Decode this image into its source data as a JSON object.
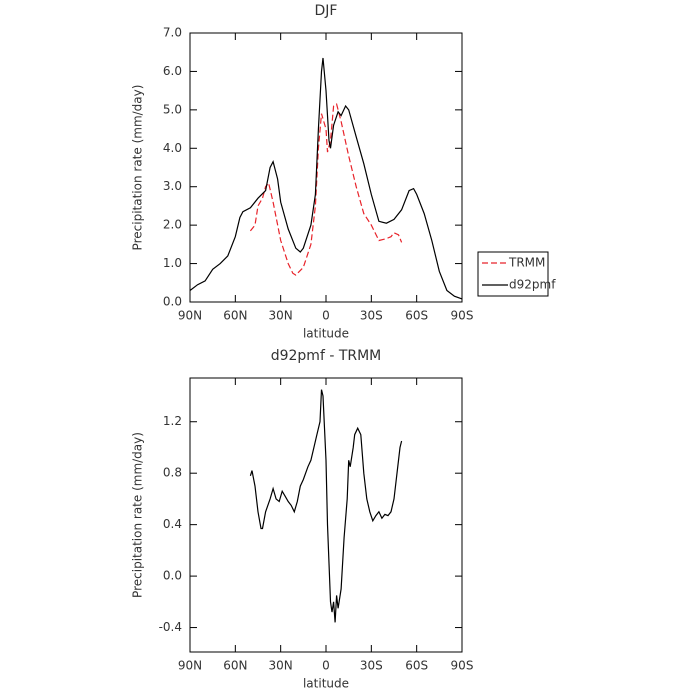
{
  "chart_data": [
    {
      "type": "line",
      "title": "DJF",
      "xlabel": "latitude",
      "ylabel": "Precipitation rate (mm/day)",
      "xlim": [
        90,
        -90
      ],
      "xticks": [
        {
          "value": 90,
          "label": "90N"
        },
        {
          "value": 60,
          "label": "60N"
        },
        {
          "value": 30,
          "label": "30N"
        },
        0,
        {
          "value": -30,
          "label": "30S"
        },
        {
          "value": -60,
          "label": "60S"
        },
        {
          "value": -90,
          "label": "90S"
        }
      ],
      "ylim": [
        0,
        7
      ],
      "yticks": [
        {
          "value": 0,
          "label": "0.0"
        },
        {
          "value": 1,
          "label": "1.0"
        },
        {
          "value": 2,
          "label": "2.0"
        },
        {
          "value": 3,
          "label": "3.0"
        },
        {
          "value": 4,
          "label": "4.0"
        },
        {
          "value": 5,
          "label": "5.0"
        },
        {
          "value": 6,
          "label": "6.0"
        },
        {
          "value": 7,
          "label": "7.0"
        }
      ],
      "legend": "right",
      "series": [
        {
          "name": "TRMM",
          "color": "#e8232a",
          "dashed": true,
          "x": [
            50,
            47,
            45,
            42,
            40,
            38,
            35,
            30,
            25,
            22,
            20,
            15,
            10,
            7,
            5,
            3,
            0,
            -1,
            -3,
            -5,
            -7,
            -10,
            -15,
            -20,
            -25,
            -30,
            -35,
            -40,
            -43,
            -45,
            -48,
            -50
          ],
          "values": [
            1.85,
            2.0,
            2.5,
            2.7,
            3.0,
            3.1,
            2.6,
            1.6,
            1.0,
            0.75,
            0.7,
            0.9,
            1.5,
            2.5,
            4.0,
            4.9,
            4.5,
            3.9,
            4.2,
            5.1,
            5.15,
            4.7,
            3.8,
            3.0,
            2.3,
            2.0,
            1.6,
            1.65,
            1.7,
            1.8,
            1.75,
            1.55
          ]
        },
        {
          "name": "d92pmf",
          "color": "#000000",
          "dashed": false,
          "x": [
            90,
            85,
            80,
            75,
            70,
            65,
            60,
            57,
            55,
            50,
            45,
            40,
            37,
            35,
            32,
            30,
            25,
            20,
            17,
            15,
            10,
            7,
            5,
            3,
            2,
            0,
            -2,
            -3,
            -5,
            -8,
            -10,
            -13,
            -15,
            -20,
            -25,
            -30,
            -35,
            -40,
            -45,
            -50,
            -55,
            -58,
            -60,
            -65,
            -70,
            -75,
            -80,
            -85,
            -90
          ],
          "values": [
            0.3,
            0.45,
            0.55,
            0.85,
            1.0,
            1.2,
            1.7,
            2.2,
            2.35,
            2.45,
            2.7,
            2.9,
            3.5,
            3.65,
            3.2,
            2.6,
            1.9,
            1.4,
            1.3,
            1.4,
            2.0,
            2.8,
            4.5,
            6.0,
            6.35,
            5.5,
            4.2,
            4.0,
            4.6,
            4.95,
            4.85,
            5.1,
            5.0,
            4.3,
            3.6,
            2.8,
            2.1,
            2.05,
            2.15,
            2.4,
            2.9,
            2.95,
            2.8,
            2.3,
            1.6,
            0.8,
            0.3,
            0.15,
            0.08
          ]
        }
      ]
    },
    {
      "type": "line",
      "title": "d92pmf - TRMM",
      "xlabel": "latitude",
      "ylabel": "Precipitation rate (mm/day)",
      "xlim": [
        90,
        -90
      ],
      "xticks": [
        {
          "value": 90,
          "label": "90N"
        },
        {
          "value": 60,
          "label": "60N"
        },
        {
          "value": 30,
          "label": "30N"
        },
        0,
        {
          "value": -30,
          "label": "30S"
        },
        {
          "value": -60,
          "label": "60S"
        },
        {
          "value": -90,
          "label": "90S"
        }
      ],
      "ylim": [
        -0.59,
        1.54
      ],
      "yticks": [
        -0.4,
        {
          "value": 0,
          "label": "0.0"
        },
        0.4,
        0.8,
        1.2
      ],
      "color": "#000000",
      "x": [
        50,
        49,
        47,
        45,
        43,
        42,
        40,
        37,
        35,
        33,
        31,
        29,
        27,
        25,
        23,
        21,
        19,
        17,
        15,
        12,
        10,
        8,
        6,
        4,
        3,
        2,
        0,
        -1,
        -2,
        -3,
        -4,
        -5,
        -6,
        -7,
        -8,
        -10,
        -12,
        -14,
        -15,
        -16,
        -18,
        -19,
        -21,
        -23,
        -25,
        -27,
        -29,
        -31,
        -33,
        -35,
        -37,
        -39,
        -41,
        -43,
        -45,
        -47,
        -49,
        -50
      ],
      "values": [
        0.78,
        0.82,
        0.7,
        0.5,
        0.37,
        0.37,
        0.5,
        0.6,
        0.68,
        0.6,
        0.58,
        0.66,
        0.62,
        0.58,
        0.55,
        0.5,
        0.58,
        0.7,
        0.75,
        0.85,
        0.9,
        1.0,
        1.1,
        1.2,
        1.45,
        1.4,
        0.9,
        0.4,
        0.1,
        -0.2,
        -0.28,
        -0.2,
        -0.36,
        -0.15,
        -0.25,
        -0.1,
        0.3,
        0.6,
        0.9,
        0.85,
        1.0,
        1.1,
        1.15,
        1.1,
        0.8,
        0.6,
        0.5,
        0.43,
        0.47,
        0.5,
        0.45,
        0.48,
        0.47,
        0.5,
        0.6,
        0.8,
        1.0,
        1.05
      ]
    }
  ]
}
